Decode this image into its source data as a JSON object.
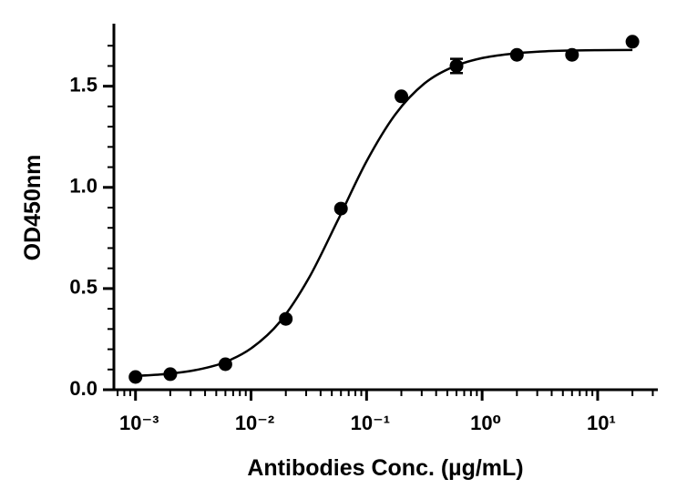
{
  "chart_data": {
    "type": "scatter",
    "xlabel": "Antibodies Conc. (µg/mL)",
    "ylabel": "OD450nm",
    "color": "#000000",
    "xscale": "log",
    "xlim": [
      0.00065,
      32
    ],
    "ylim": [
      0,
      1.8
    ],
    "xticks": [
      {
        "value": 0.001,
        "label": "10⁻³"
      },
      {
        "value": 0.01,
        "label": "10⁻²"
      },
      {
        "value": 0.1,
        "label": "10⁻¹"
      },
      {
        "value": 1,
        "label": "10⁰"
      },
      {
        "value": 10,
        "label": "10¹"
      }
    ],
    "xminorticks": [
      0.0007,
      0.0008,
      0.0009,
      0.002,
      0.003,
      0.004,
      0.005,
      0.006,
      0.007,
      0.008,
      0.009,
      0.02,
      0.03,
      0.04,
      0.05,
      0.06,
      0.07,
      0.08,
      0.09,
      0.2,
      0.3,
      0.4,
      0.5,
      0.6,
      0.7,
      0.8,
      0.9,
      2,
      3,
      4,
      5,
      6,
      7,
      8,
      9,
      20,
      30
    ],
    "yticks": [
      {
        "value": 0,
        "label": "0.0"
      },
      0.5,
      {
        "value": 1,
        "label": "1.0"
      },
      1.5
    ],
    "yminorticks": [
      0.1,
      0.2,
      0.3,
      0.4,
      0.6,
      0.7,
      0.8,
      0.9,
      1.1,
      1.2,
      1.3,
      1.4,
      1.6,
      1.7
    ],
    "points": {
      "x": [
        0.001,
        0.002,
        0.006,
        0.02,
        0.06,
        0.2,
        0.6,
        2,
        6,
        20
      ],
      "values": [
        0.063,
        0.077,
        0.126,
        0.35,
        0.895,
        1.45,
        1.6,
        1.655,
        1.655,
        1.72
      ],
      "errors": [
        null,
        null,
        null,
        null,
        null,
        null,
        0.035,
        null,
        null,
        null
      ]
    },
    "fit": {
      "x": [
        0.001,
        0.00178,
        0.00316,
        0.00562,
        0.01,
        0.0178,
        0.0316,
        0.0562,
        0.1,
        0.178,
        0.316,
        0.562,
        1,
        1.78,
        3.16,
        5.62,
        10,
        20
      ],
      "values": [
        0.068,
        0.077,
        0.095,
        0.131,
        0.204,
        0.336,
        0.551,
        0.836,
        1.129,
        1.362,
        1.513,
        1.596,
        1.639,
        1.66,
        1.671,
        1.676,
        1.678,
        1.679
      ]
    }
  }
}
